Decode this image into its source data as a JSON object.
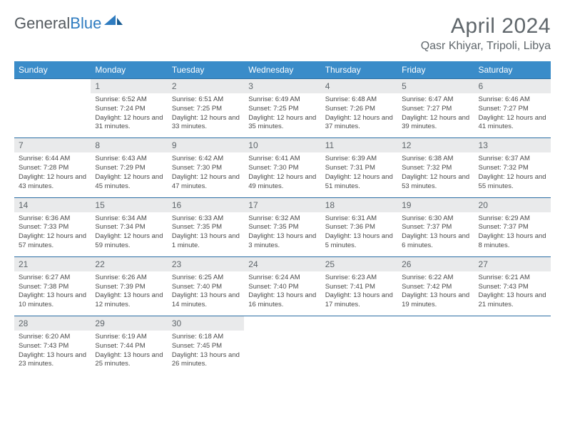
{
  "logo": {
    "text1": "General",
    "text2": "Blue"
  },
  "colors": {
    "header_bg": "#3a8cc9",
    "header_text": "#ffffff",
    "daynum_bg": "#e9eaeb",
    "daynum_text": "#5f666b",
    "row_border": "#2a6da3",
    "title_color": "#5f666b",
    "body_text": "#4a4a4a"
  },
  "title": "April 2024",
  "location": "Qasr Khiyar, Tripoli, Libya",
  "weekdays": [
    "Sunday",
    "Monday",
    "Tuesday",
    "Wednesday",
    "Thursday",
    "Friday",
    "Saturday"
  ],
  "weeks": [
    [
      {
        "n": "",
        "sr": "",
        "ss": "",
        "dl": ""
      },
      {
        "n": "1",
        "sr": "Sunrise: 6:52 AM",
        "ss": "Sunset: 7:24 PM",
        "dl": "Daylight: 12 hours and 31 minutes."
      },
      {
        "n": "2",
        "sr": "Sunrise: 6:51 AM",
        "ss": "Sunset: 7:25 PM",
        "dl": "Daylight: 12 hours and 33 minutes."
      },
      {
        "n": "3",
        "sr": "Sunrise: 6:49 AM",
        "ss": "Sunset: 7:25 PM",
        "dl": "Daylight: 12 hours and 35 minutes."
      },
      {
        "n": "4",
        "sr": "Sunrise: 6:48 AM",
        "ss": "Sunset: 7:26 PM",
        "dl": "Daylight: 12 hours and 37 minutes."
      },
      {
        "n": "5",
        "sr": "Sunrise: 6:47 AM",
        "ss": "Sunset: 7:27 PM",
        "dl": "Daylight: 12 hours and 39 minutes."
      },
      {
        "n": "6",
        "sr": "Sunrise: 6:46 AM",
        "ss": "Sunset: 7:27 PM",
        "dl": "Daylight: 12 hours and 41 minutes."
      }
    ],
    [
      {
        "n": "7",
        "sr": "Sunrise: 6:44 AM",
        "ss": "Sunset: 7:28 PM",
        "dl": "Daylight: 12 hours and 43 minutes."
      },
      {
        "n": "8",
        "sr": "Sunrise: 6:43 AM",
        "ss": "Sunset: 7:29 PM",
        "dl": "Daylight: 12 hours and 45 minutes."
      },
      {
        "n": "9",
        "sr": "Sunrise: 6:42 AM",
        "ss": "Sunset: 7:30 PM",
        "dl": "Daylight: 12 hours and 47 minutes."
      },
      {
        "n": "10",
        "sr": "Sunrise: 6:41 AM",
        "ss": "Sunset: 7:30 PM",
        "dl": "Daylight: 12 hours and 49 minutes."
      },
      {
        "n": "11",
        "sr": "Sunrise: 6:39 AM",
        "ss": "Sunset: 7:31 PM",
        "dl": "Daylight: 12 hours and 51 minutes."
      },
      {
        "n": "12",
        "sr": "Sunrise: 6:38 AM",
        "ss": "Sunset: 7:32 PM",
        "dl": "Daylight: 12 hours and 53 minutes."
      },
      {
        "n": "13",
        "sr": "Sunrise: 6:37 AM",
        "ss": "Sunset: 7:32 PM",
        "dl": "Daylight: 12 hours and 55 minutes."
      }
    ],
    [
      {
        "n": "14",
        "sr": "Sunrise: 6:36 AM",
        "ss": "Sunset: 7:33 PM",
        "dl": "Daylight: 12 hours and 57 minutes."
      },
      {
        "n": "15",
        "sr": "Sunrise: 6:34 AM",
        "ss": "Sunset: 7:34 PM",
        "dl": "Daylight: 12 hours and 59 minutes."
      },
      {
        "n": "16",
        "sr": "Sunrise: 6:33 AM",
        "ss": "Sunset: 7:35 PM",
        "dl": "Daylight: 13 hours and 1 minute."
      },
      {
        "n": "17",
        "sr": "Sunrise: 6:32 AM",
        "ss": "Sunset: 7:35 PM",
        "dl": "Daylight: 13 hours and 3 minutes."
      },
      {
        "n": "18",
        "sr": "Sunrise: 6:31 AM",
        "ss": "Sunset: 7:36 PM",
        "dl": "Daylight: 13 hours and 5 minutes."
      },
      {
        "n": "19",
        "sr": "Sunrise: 6:30 AM",
        "ss": "Sunset: 7:37 PM",
        "dl": "Daylight: 13 hours and 6 minutes."
      },
      {
        "n": "20",
        "sr": "Sunrise: 6:29 AM",
        "ss": "Sunset: 7:37 PM",
        "dl": "Daylight: 13 hours and 8 minutes."
      }
    ],
    [
      {
        "n": "21",
        "sr": "Sunrise: 6:27 AM",
        "ss": "Sunset: 7:38 PM",
        "dl": "Daylight: 13 hours and 10 minutes."
      },
      {
        "n": "22",
        "sr": "Sunrise: 6:26 AM",
        "ss": "Sunset: 7:39 PM",
        "dl": "Daylight: 13 hours and 12 minutes."
      },
      {
        "n": "23",
        "sr": "Sunrise: 6:25 AM",
        "ss": "Sunset: 7:40 PM",
        "dl": "Daylight: 13 hours and 14 minutes."
      },
      {
        "n": "24",
        "sr": "Sunrise: 6:24 AM",
        "ss": "Sunset: 7:40 PM",
        "dl": "Daylight: 13 hours and 16 minutes."
      },
      {
        "n": "25",
        "sr": "Sunrise: 6:23 AM",
        "ss": "Sunset: 7:41 PM",
        "dl": "Daylight: 13 hours and 17 minutes."
      },
      {
        "n": "26",
        "sr": "Sunrise: 6:22 AM",
        "ss": "Sunset: 7:42 PM",
        "dl": "Daylight: 13 hours and 19 minutes."
      },
      {
        "n": "27",
        "sr": "Sunrise: 6:21 AM",
        "ss": "Sunset: 7:43 PM",
        "dl": "Daylight: 13 hours and 21 minutes."
      }
    ],
    [
      {
        "n": "28",
        "sr": "Sunrise: 6:20 AM",
        "ss": "Sunset: 7:43 PM",
        "dl": "Daylight: 13 hours and 23 minutes."
      },
      {
        "n": "29",
        "sr": "Sunrise: 6:19 AM",
        "ss": "Sunset: 7:44 PM",
        "dl": "Daylight: 13 hours and 25 minutes."
      },
      {
        "n": "30",
        "sr": "Sunrise: 6:18 AM",
        "ss": "Sunset: 7:45 PM",
        "dl": "Daylight: 13 hours and 26 minutes."
      },
      {
        "n": "",
        "sr": "",
        "ss": "",
        "dl": ""
      },
      {
        "n": "",
        "sr": "",
        "ss": "",
        "dl": ""
      },
      {
        "n": "",
        "sr": "",
        "ss": "",
        "dl": ""
      },
      {
        "n": "",
        "sr": "",
        "ss": "",
        "dl": ""
      }
    ]
  ]
}
